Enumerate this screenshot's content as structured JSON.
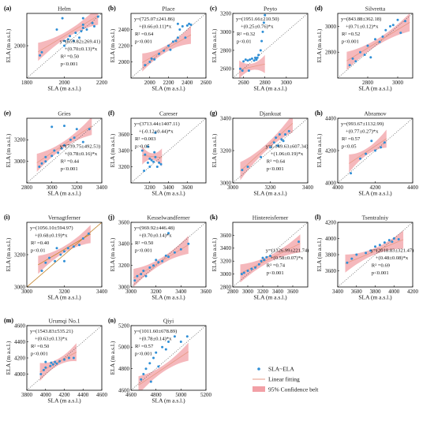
{
  "colors": {
    "band": "#f2a0a6",
    "line": "#e79a86",
    "point": "#2f8fd6",
    "identity": "#555555",
    "frame": "#000000",
    "vernagt_line": "#c8862a"
  },
  "axis_labels": {
    "x": "SLA (m a.s.l.)",
    "y": "ELA (m a.s.l.)"
  },
  "legend": {
    "items": [
      {
        "key": "points",
        "label": "SLA~ELA"
      },
      {
        "key": "line",
        "label": "Linear fitting"
      },
      {
        "key": "band",
        "label": "95% Confidence belt"
      }
    ]
  },
  "chart_data": [
    {
      "type": "scatter",
      "panel": "(a)",
      "title": "Helm",
      "xlim": [
        1800,
        2200
      ],
      "ylim": [
        1800,
        2200
      ],
      "xticks": [
        "1800",
        "2000",
        "2200"
      ],
      "yticks": [
        "2000"
      ],
      "annotation": [
        "y=(659.82±269.41)",
        "+(0.70±0.13)*x",
        "R² =0.50",
        "p<0.001"
      ],
      "fit": {
        "intercept": 659.82,
        "slope": 0.7,
        "x_range": [
          1860,
          2180
        ]
      },
      "points": [
        [
          1870,
          1940
        ],
        [
          1880,
          1960
        ],
        [
          1960,
          2100
        ],
        [
          2000,
          2000
        ],
        [
          2000,
          2030
        ],
        [
          2020,
          2040
        ],
        [
          2030,
          2060
        ],
        [
          2050,
          2030
        ],
        [
          2060,
          2080
        ],
        [
          2080,
          2050
        ],
        [
          2090,
          2090
        ],
        [
          2100,
          2130
        ],
        [
          2100,
          2170
        ],
        [
          2100,
          2110
        ],
        [
          2120,
          2100
        ],
        [
          2150,
          2140
        ],
        [
          2160,
          2120
        ],
        [
          2180,
          2180
        ],
        [
          1990,
          2170
        ]
      ]
    },
    {
      "type": "scatter",
      "panel": "(b)",
      "title": "Place",
      "xlim": [
        1800,
        2600
      ],
      "ylim": [
        1800,
        2600
      ],
      "xticks": [
        "2000",
        "2200",
        "2400",
        "2600"
      ],
      "yticks": [
        "2000",
        "2200",
        "2400"
      ],
      "annotation": [
        "y=(725.07±241.86)",
        "+(0.66±0.11)*x",
        "R² =0.64",
        "p<0.001"
      ],
      "fit": {
        "intercept": 725.07,
        "slope": 0.66,
        "x_range": [
          1920,
          2440
        ]
      },
      "points": [
        [
          1950,
          1960
        ],
        [
          2000,
          2000
        ],
        [
          2020,
          2040
        ],
        [
          2050,
          2030
        ],
        [
          2100,
          2100
        ],
        [
          2150,
          2140
        ],
        [
          2200,
          2200
        ],
        [
          2220,
          2150
        ],
        [
          2250,
          2250
        ],
        [
          2280,
          2260
        ],
        [
          2300,
          2300
        ],
        [
          2320,
          2400
        ],
        [
          2350,
          2440
        ],
        [
          2380,
          2300
        ],
        [
          2400,
          2450
        ],
        [
          2420,
          2470
        ],
        [
          2440,
          2460
        ],
        [
          2300,
          2470
        ]
      ]
    },
    {
      "type": "scatter",
      "panel": "(c)",
      "title": "Peyto",
      "xlim": [
        2500,
        3200
      ],
      "ylim": [
        2500,
        3200
      ],
      "xticks": [
        "2600",
        "2800",
        "3000"
      ],
      "yticks": [
        "2600",
        "2800",
        "3000",
        "3200"
      ],
      "annotation": [
        "y=(1951.66±210.50)",
        "+(0.25±0.76)*x",
        "R² =0.32",
        "p<0.01"
      ],
      "fit": {
        "intercept": 1951.66,
        "slope": 0.25,
        "x_range": [
          2560,
          2800
        ]
      },
      "points": [
        [
          2570,
          2600
        ],
        [
          2600,
          2680
        ],
        [
          2620,
          2700
        ],
        [
          2640,
          2690
        ],
        [
          2660,
          2700
        ],
        [
          2680,
          2710
        ],
        [
          2700,
          2690
        ],
        [
          2710,
          2720
        ],
        [
          2720,
          2700
        ],
        [
          2740,
          2750
        ],
        [
          2760,
          2800
        ],
        [
          2770,
          2900
        ],
        [
          2780,
          3000
        ],
        [
          2790,
          3100
        ],
        [
          2800,
          3180
        ],
        [
          2650,
          2580
        ],
        [
          2590,
          2580
        ],
        [
          2730,
          2720
        ]
      ]
    },
    {
      "type": "scatter",
      "panel": "(d)",
      "title": "Silvretta",
      "xlim": [
        2600,
        3100
      ],
      "ylim": [
        2600,
        3100
      ],
      "xticks": [
        "2800",
        "3000"
      ],
      "yticks": [
        "2800",
        "3000"
      ],
      "annotation": [
        "y=(843.88±362.18)",
        "+(0.71±0.12)*x",
        "R² =0.52",
        "p<0.001"
      ],
      "fit": {
        "intercept": 843.88,
        "slope": 0.71,
        "x_range": [
          2660,
          3080
        ]
      },
      "points": [
        [
          2680,
          2700
        ],
        [
          2700,
          2750
        ],
        [
          2720,
          2730
        ],
        [
          2750,
          2800
        ],
        [
          2780,
          2780
        ],
        [
          2800,
          2850
        ],
        [
          2850,
          2900
        ],
        [
          2880,
          2880
        ],
        [
          2900,
          2920
        ],
        [
          2920,
          2970
        ],
        [
          2950,
          3000
        ],
        [
          2970,
          3010
        ],
        [
          3000,
          3050
        ],
        [
          3050,
          3040
        ],
        [
          3020,
          2950
        ],
        [
          2820,
          2760
        ]
      ]
    },
    {
      "type": "scatter",
      "panel": "(e)",
      "title": "Gries",
      "xlim": [
        2800,
        3400
      ],
      "ylim": [
        2800,
        3400
      ],
      "xticks": [
        "2800",
        "3000",
        "3200",
        "3400"
      ],
      "yticks": [
        "3000",
        "3200"
      ],
      "annotation": [
        "y=(739.75±492.53)",
        "+(0.78±0.16)*x",
        "R² =0.44",
        "p<0.001"
      ],
      "fit": {
        "intercept": 739.75,
        "slope": 0.78,
        "x_range": [
          2880,
          3320
        ]
      },
      "points": [
        [
          2900,
          2950
        ],
        [
          2920,
          2980
        ],
        [
          2950,
          3000
        ],
        [
          3000,
          3050
        ],
        [
          3020,
          3100
        ],
        [
          3050,
          3080
        ],
        [
          3080,
          3120
        ],
        [
          3100,
          3150
        ],
        [
          3150,
          3200
        ],
        [
          3180,
          3220
        ],
        [
          3200,
          3300
        ],
        [
          3250,
          3180
        ],
        [
          3300,
          3300
        ],
        [
          3000,
          3320
        ],
        [
          3100,
          3330
        ],
        [
          2950,
          3040
        ]
      ]
    },
    {
      "type": "scatter",
      "panel": "(f)",
      "title": "Careser",
      "xlim": [
        3000,
        3800
      ],
      "ylim": [
        3000,
        3800
      ],
      "xticks": [
        "3200",
        "3400",
        "3600"
      ],
      "yticks": [
        "3200",
        "3400",
        "3600"
      ],
      "annotation": [
        "y=(3713.44±1407.11)",
        "+(-0.12±0.44)*x",
        "R² =0.003",
        "p>0.05"
      ],
      "fit": {
        "intercept": 3713.44,
        "slope": -0.12,
        "x_range": [
          3120,
          3330
        ]
      },
      "points": [
        [
          3120,
          3400
        ],
        [
          3150,
          3350
        ],
        [
          3180,
          3250
        ],
        [
          3200,
          3300
        ],
        [
          3220,
          3280
        ],
        [
          3240,
          3260
        ],
        [
          3260,
          3320
        ],
        [
          3280,
          3200
        ],
        [
          3300,
          3250
        ],
        [
          3320,
          3230
        ],
        [
          3140,
          3150
        ],
        [
          3200,
          3200
        ],
        [
          3260,
          3620
        ],
        [
          3180,
          3450
        ],
        [
          3250,
          3380
        ]
      ]
    },
    {
      "type": "scatter",
      "panel": "(g)",
      "title": "Djankuat",
      "xlim": [
        3000,
        3400
      ],
      "ylim": [
        3000,
        3400
      ],
      "xticks": [
        "3000",
        "3200",
        "3400"
      ],
      "yticks": [
        "3000",
        "3200",
        "3400"
      ],
      "annotation": [
        "y=(-149.63±607.34)",
        "+(1.06±0.19)*x",
        "R² =0.64",
        "p<0.001"
      ],
      "fit": {
        "intercept": -149.63,
        "slope": 1.06,
        "x_range": [
          3040,
          3320
        ]
      },
      "points": [
        [
          3050,
          3080
        ],
        [
          3080,
          3100
        ],
        [
          3150,
          3160
        ],
        [
          3200,
          3220
        ],
        [
          3220,
          3250
        ],
        [
          3240,
          3230
        ],
        [
          3260,
          3270
        ],
        [
          3280,
          3300
        ],
        [
          3300,
          3320
        ],
        [
          3250,
          3300
        ],
        [
          3230,
          3280
        ],
        [
          3270,
          3260
        ]
      ]
    },
    {
      "type": "scatter",
      "panel": "(h)",
      "title": "Abramov",
      "xlim": [
        4000,
        4400
      ],
      "ylim": [
        4000,
        4400
      ],
      "xticks": [
        "4000",
        "4200",
        "4400"
      ],
      "yticks": [
        "4000",
        "4200",
        "4400"
      ],
      "annotation": [
        "y=(993.67±1132.99)",
        "+(0.77±0.27)*x",
        "R² =0.57",
        "p<0.05"
      ],
      "fit": {
        "intercept": 993.67,
        "slope": 0.77,
        "x_range": [
          4060,
          4260
        ]
      },
      "points": [
        [
          4070,
          4060
        ],
        [
          4120,
          4150
        ],
        [
          4150,
          4180
        ],
        [
          4200,
          4200
        ],
        [
          4230,
          4220
        ],
        [
          4250,
          4250
        ],
        [
          4180,
          4260
        ]
      ]
    },
    {
      "type": "scatter",
      "panel": "(i)",
      "title": "Vernagtferner",
      "xlim": [
        3000,
        3400
      ],
      "ylim": [
        3000,
        3400
      ],
      "xticks": [
        "3000",
        "3200",
        "3400"
      ],
      "yticks": [
        "3000",
        "3200"
      ],
      "annotation": [
        "y=(1056.10±594.97)",
        "+(0.68±0.19)*x",
        "R² =0.40",
        "p<0.01"
      ],
      "fit": {
        "intercept": 1056.1,
        "slope": 0.68,
        "x_range": [
          3060,
          3340
        ]
      },
      "points": [
        [
          3080,
          3100
        ],
        [
          3100,
          3150
        ],
        [
          3120,
          3180
        ],
        [
          3150,
          3160
        ],
        [
          3180,
          3200
        ],
        [
          3200,
          3220
        ],
        [
          3220,
          3240
        ],
        [
          3250,
          3250
        ],
        [
          3280,
          3260
        ],
        [
          3300,
          3300
        ],
        [
          3330,
          3330
        ],
        [
          3160,
          3240
        ],
        [
          3200,
          3160
        ]
      ]
    },
    {
      "type": "scatter",
      "panel": "(j)",
      "title": "Kesselwandferner",
      "xlim": [
        3000,
        3600
      ],
      "ylim": [
        3000,
        3600
      ],
      "xticks": [
        "3000",
        "3200",
        "3400",
        "3600"
      ],
      "yticks": [
        "3000",
        "3200",
        "3400",
        "3600"
      ],
      "annotation": [
        "y=(969.92±446.48)",
        "+(0.70±0.14)*x",
        "R² =0.50",
        "p<0.001"
      ],
      "fit": {
        "intercept": 969.92,
        "slope": 0.7,
        "x_range": [
          3020,
          3460
        ]
      },
      "points": [
        [
          3050,
          3100
        ],
        [
          3080,
          3120
        ],
        [
          3100,
          3150
        ],
        [
          3120,
          3100
        ],
        [
          3150,
          3180
        ],
        [
          3180,
          3200
        ],
        [
          3200,
          3250
        ],
        [
          3220,
          3230
        ],
        [
          3250,
          3240
        ],
        [
          3280,
          3290
        ],
        [
          3300,
          3280
        ],
        [
          3350,
          3320
        ],
        [
          3400,
          3350
        ],
        [
          3300,
          3500
        ],
        [
          3460,
          3400
        ],
        [
          3030,
          3060
        ]
      ]
    },
    {
      "type": "scatter",
      "panel": "(k)",
      "title": "Hintereisferner",
      "xlim": [
        2800,
        3800
      ],
      "ylim": [
        2800,
        3800
      ],
      "xticks": [
        "2800",
        "3000",
        "3200",
        "3400",
        "3600"
      ],
      "yticks": [
        "2800",
        "3000",
        "3200",
        "3400",
        "3600"
      ],
      "annotation": [
        "y=(1326.99±221.74)",
        "+(0.58±0.07)*x",
        "R² =0.74",
        "p<0.001"
      ],
      "fit": {
        "intercept": 1326.99,
        "slope": 0.58,
        "x_range": [
          2900,
          3700
        ]
      },
      "points": [
        [
          2920,
          3000
        ],
        [
          2950,
          3020
        ],
        [
          3000,
          3050
        ],
        [
          3050,
          3080
        ],
        [
          3100,
          3100
        ],
        [
          3150,
          3150
        ],
        [
          3180,
          3200
        ],
        [
          3200,
          3250
        ],
        [
          3220,
          3220
        ],
        [
          3250,
          3260
        ],
        [
          3300,
          3280
        ],
        [
          3680,
          3500
        ]
      ]
    },
    {
      "type": "scatter",
      "panel": "(l)",
      "title": "Tsentralniy",
      "xlim": [
        3400,
        4200
      ],
      "ylim": [
        3400,
        4200
      ],
      "xticks": [
        "3400",
        "3600",
        "3800",
        "4000",
        "4200"
      ],
      "yticks": [
        "3600",
        "3800",
        "4000",
        "4200"
      ],
      "annotation": [
        "y=(2018.83±321.47)",
        "+(0.48±0.08)*x",
        "R² =0.69",
        "p<0.001"
      ],
      "fit": {
        "intercept": 2018.83,
        "slope": 0.48,
        "x_range": [
          3480,
          4100
        ]
      },
      "points": [
        [
          3500,
          3700
        ],
        [
          3550,
          3750
        ],
        [
          3600,
          3800
        ],
        [
          3700,
          3820
        ],
        [
          3750,
          3850
        ],
        [
          3800,
          3900
        ],
        [
          3850,
          3920
        ],
        [
          3900,
          3950
        ],
        [
          3950,
          3980
        ],
        [
          4000,
          4000
        ],
        [
          4050,
          3990
        ],
        [
          3980,
          3960
        ]
      ]
    },
    {
      "type": "scatter",
      "panel": "(m)",
      "title": "Urumqi No.1",
      "xlim": [
        3800,
        4600
      ],
      "ylim": [
        3800,
        4600
      ],
      "xticks": [
        "3800",
        "4000",
        "4200",
        "4400",
        "4600"
      ],
      "yticks": [
        "4000",
        "4200",
        "4400",
        "4600"
      ],
      "annotation": [
        "y=(1543.83±535.21)",
        "+(0.63±0.13)*x",
        "R² =0.50",
        "p<0.001"
      ],
      "fit": {
        "intercept": 1543.83,
        "slope": 0.63,
        "x_range": [
          3940,
          4330
        ]
      },
      "points": [
        [
          3950,
          4000
        ],
        [
          3980,
          4050
        ],
        [
          4000,
          4080
        ],
        [
          4050,
          4100
        ],
        [
          4080,
          4120
        ],
        [
          4100,
          4150
        ],
        [
          4120,
          4130
        ],
        [
          4150,
          4160
        ],
        [
          4200,
          4180
        ],
        [
          4250,
          4200
        ],
        [
          4300,
          4200
        ],
        [
          4000,
          4150
        ],
        [
          4060,
          4140
        ]
      ]
    },
    {
      "type": "scatter",
      "panel": "(n)",
      "title": "Qiyi",
      "xlim": [
        4600,
        5200
      ],
      "ylim": [
        4600,
        5200
      ],
      "xticks": [
        "4600",
        "4800",
        "5000",
        "5200"
      ],
      "yticks": [
        "4600",
        "4800",
        "5000",
        "5200"
      ],
      "annotation": [
        "y=(1011.60±678.89)",
        "+(0.78±0.14)*x",
        "R² =0.57",
        "p<0.001"
      ],
      "fit": {
        "intercept": 1011.6,
        "slope": 0.78,
        "x_range": [
          4660,
          5060
        ]
      },
      "points": [
        [
          4680,
          4700
        ],
        [
          4700,
          4750
        ],
        [
          4720,
          4800
        ],
        [
          4750,
          4850
        ],
        [
          4780,
          4900
        ],
        [
          4800,
          4950
        ],
        [
          4850,
          5000
        ],
        [
          4900,
          5050
        ],
        [
          4950,
          5100
        ],
        [
          5000,
          5050
        ],
        [
          5050,
          5100
        ],
        [
          4820,
          4820
        ],
        [
          4880,
          4980
        ],
        [
          4760,
          4680
        ]
      ]
    }
  ]
}
